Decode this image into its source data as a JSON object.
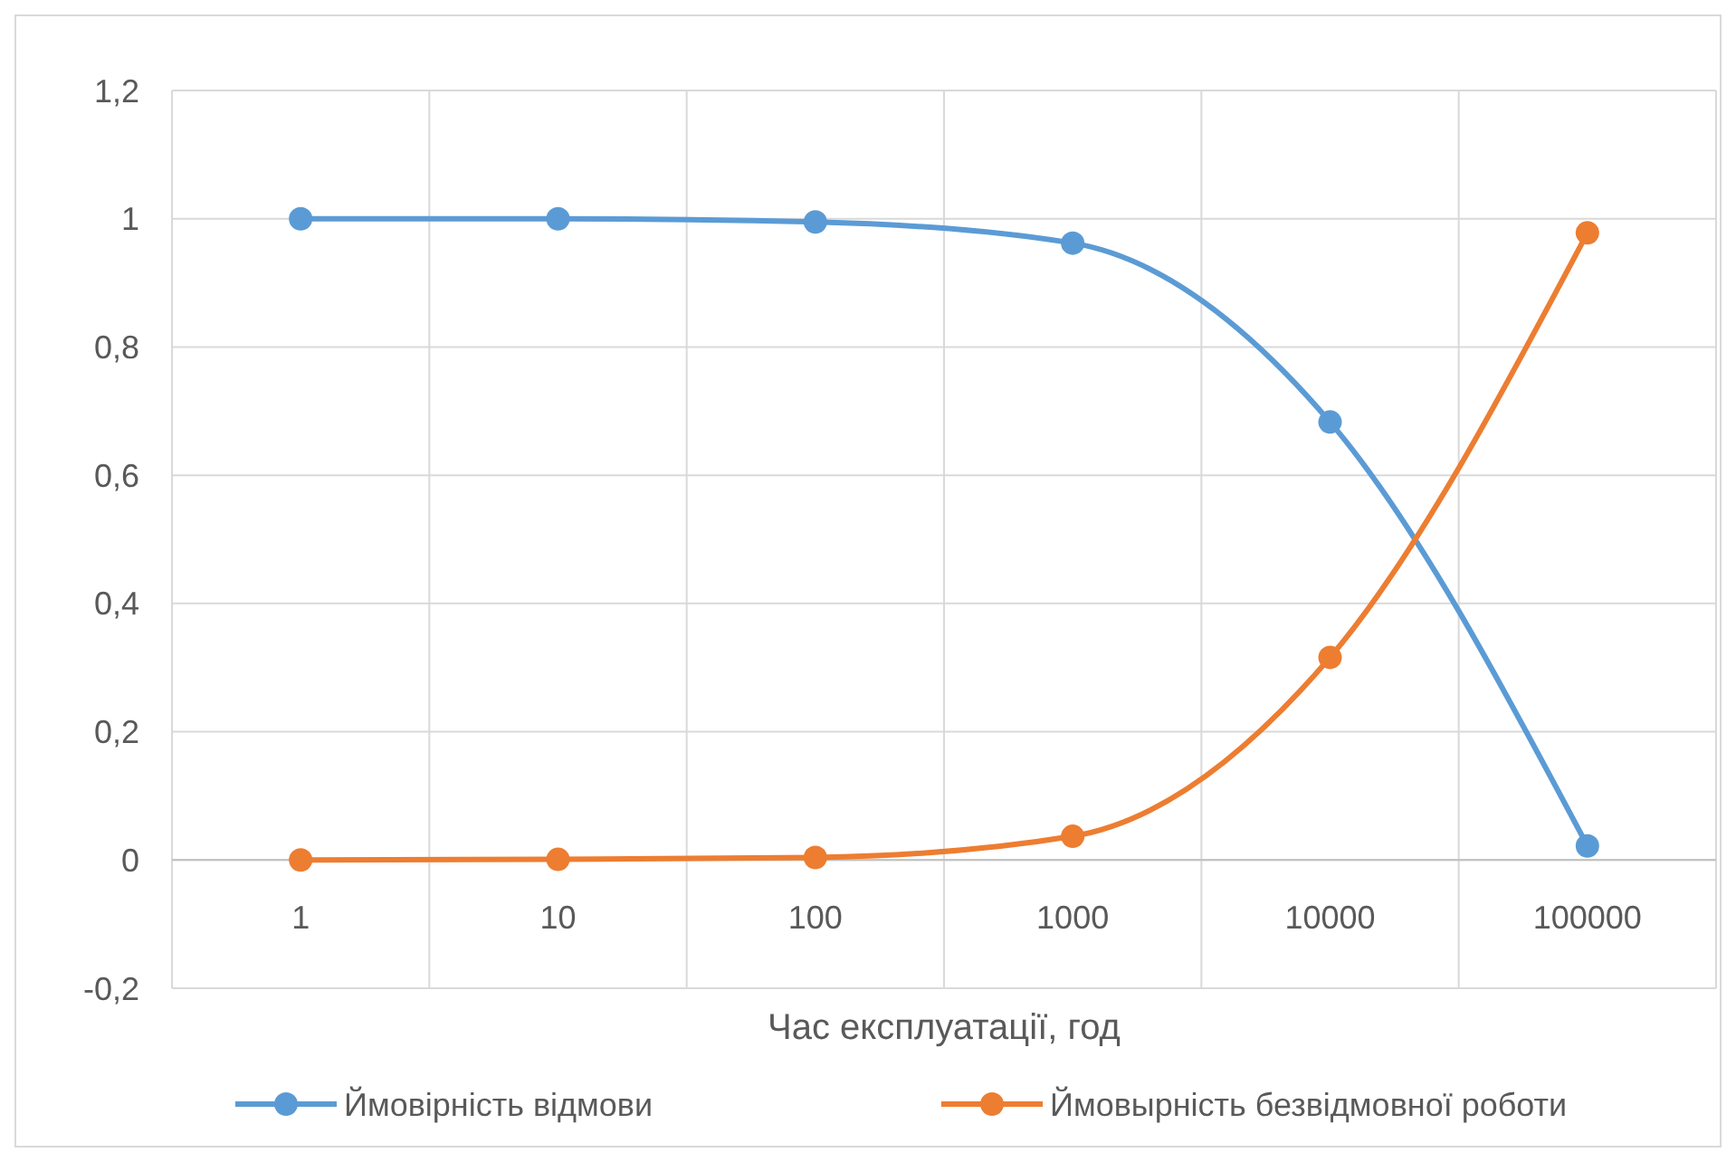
{
  "chart_data": {
    "type": "line",
    "xlabel": "Час експлуатації, год",
    "categories": [
      "1",
      "10",
      "100",
      "1000",
      "10000",
      "100000"
    ],
    "series": [
      {
        "name": "Ймовірність відмови",
        "color": "#5b9bd5",
        "values": [
          1,
          1,
          0.995,
          0.962,
          0.683,
          0.022
        ]
      },
      {
        "name": "Ймовырність безвідмовної роботи",
        "color": "#ed7d31",
        "values": [
          0,
          0.001,
          0.004,
          0.037,
          0.316,
          0.978
        ]
      }
    ],
    "ylim": [
      -0.2,
      1.2
    ],
    "yticks": [
      {
        "value": -0.2,
        "label": "-0,2"
      },
      {
        "value": 0,
        "label": "0"
      },
      {
        "value": 0.2,
        "label": "0,2"
      },
      {
        "value": 0.4,
        "label": "0,4"
      },
      {
        "value": 0.6,
        "label": "0,6"
      },
      {
        "value": 0.8,
        "label": "0,8"
      },
      {
        "value": 1,
        "label": "1"
      },
      {
        "value": 1.2,
        "label": "1,2"
      }
    ],
    "grid": true,
    "legend": "bottom",
    "marker": "circle",
    "line_style": "solid"
  }
}
